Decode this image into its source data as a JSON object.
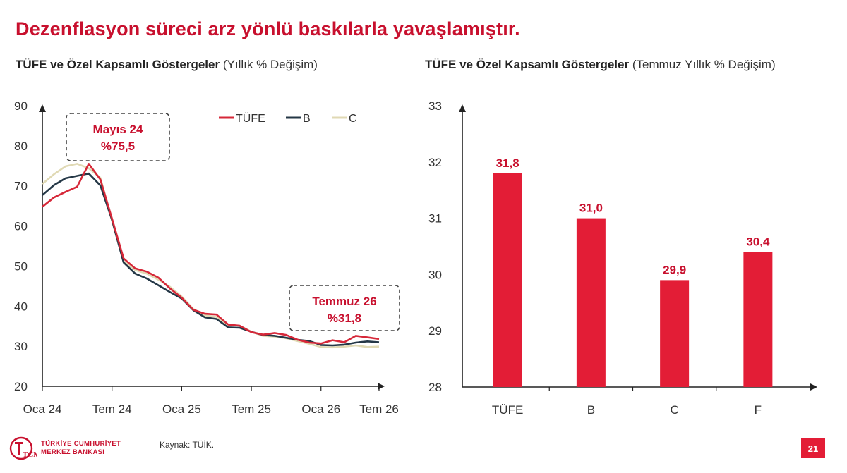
{
  "headline": "Dezenflasyon süreci arz yönlü baskılarla yavaşlamıştır.",
  "colors": {
    "accent": "#c8102e",
    "tufe": "#d62839",
    "b": "#243746",
    "c": "#e0d9b4",
    "bar": "#e31d36"
  },
  "chart_data": [
    {
      "type": "line",
      "title": "TÜFE ve Özel Kapsamlı Göstergeler",
      "subtitle": "(Yıllık % Değişim)",
      "x_ticks": [
        "Oca 24",
        "Tem 24",
        "Oca 25",
        "Tem 25",
        "Oca 26",
        "Tem 26"
      ],
      "ylim": [
        20,
        90
      ],
      "y_ticks": [
        "20",
        "30",
        "40",
        "50",
        "60",
        "70",
        "80",
        "90"
      ],
      "legend_position": "top-right",
      "series": [
        {
          "name": "TÜFE",
          "color": "#d62839",
          "values": [
            64.8,
            67.1,
            68.5,
            69.8,
            75.5,
            71.6,
            61.8,
            51.9,
            49.4,
            48.6,
            47.1,
            44.4,
            42.1,
            39.1,
            38.1,
            37.9,
            35.4,
            35.1,
            33.5,
            32.9,
            33.3,
            32.8,
            31.6,
            30.9,
            30.7,
            31.5,
            31.0,
            32.6,
            32.2,
            31.8
          ]
        },
        {
          "name": "B",
          "color": "#243746",
          "values": [
            67.7,
            70.2,
            71.9,
            72.5,
            73.1,
            70.1,
            61.5,
            50.9,
            48.1,
            46.9,
            45.2,
            43.5,
            41.9,
            39.0,
            37.2,
            36.8,
            34.7,
            34.6,
            33.6,
            32.8,
            32.6,
            32.1,
            31.6,
            31.3,
            30.3,
            30.2,
            30.4,
            30.9,
            31.2,
            31.0
          ]
        },
        {
          "name": "C",
          "color": "#e0d9b4",
          "values": [
            70.5,
            72.9,
            74.9,
            75.5,
            74.4,
            72.0,
            61.3,
            51.2,
            49.0,
            48.1,
            46.6,
            44.8,
            42.4,
            39.3,
            37.7,
            37.3,
            35.3,
            35.1,
            33.6,
            32.6,
            32.4,
            32.0,
            31.3,
            30.6,
            29.8,
            29.7,
            29.9,
            30.2,
            29.8,
            29.9
          ]
        }
      ],
      "annotations": [
        {
          "line1": "Mayıs 24",
          "line2": "%75,5",
          "point_index": 4,
          "value": 75.5
        },
        {
          "line1": "Temmuz 26",
          "line2": "%31,8",
          "point_index": 29,
          "value": 31.8
        }
      ]
    },
    {
      "type": "bar",
      "title": "TÜFE ve Özel Kapsamlı Göstergeler",
      "subtitle": "(Temmuz Yıllık % Değişim)",
      "categories": [
        "TÜFE",
        "B",
        "C",
        "F"
      ],
      "values": [
        31.8,
        31.0,
        29.9,
        30.4
      ],
      "labels": [
        "31,8",
        "31,0",
        "29,9",
        "30,4"
      ],
      "ylim": [
        28,
        33
      ],
      "y_ticks": [
        "28",
        "29",
        "30",
        "31",
        "32",
        "33"
      ]
    }
  ],
  "footer": {
    "logo_line1": "TÜRKİYE CUMHURİYET",
    "logo_line2": "MERKEZ BANKASI",
    "logo_letters": "TCMB",
    "source": "Kaynak: TÜİK.",
    "page_number": "21"
  }
}
